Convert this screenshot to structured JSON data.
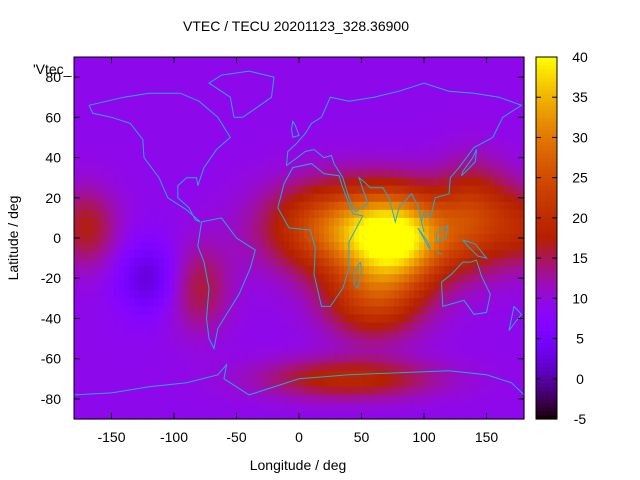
{
  "chart_data": {
    "type": "heatmap",
    "title": "VTEC / TECU 20201123_328.36900",
    "xlabel": "Longitude / deg",
    "ylabel": "Latitude / deg",
    "xlim": [
      -180,
      180
    ],
    "ylim": [
      -90,
      90
    ],
    "legend_label": "'Vtec_",
    "x_ticks": [
      -150,
      -100,
      -50,
      0,
      50,
      100,
      150
    ],
    "y_ticks": [
      -80,
      -60,
      -40,
      -20,
      0,
      20,
      40,
      60,
      80
    ],
    "colorbar": {
      "range": [
        -5,
        40
      ],
      "ticks": [
        -5,
        0,
        5,
        10,
        15,
        20,
        25,
        30,
        35,
        40
      ],
      "palette": "black-blue-purple-red-orange-yellow"
    },
    "grid": false,
    "features": [
      {
        "lon": 80,
        "lat": 0,
        "vtec": 36,
        "sx": 40,
        "sy": 22
      },
      {
        "lon": 30,
        "lat": 5,
        "vtec": 27,
        "sx": 55,
        "sy": 22
      },
      {
        "lon": 60,
        "lat": -30,
        "vtec": 22,
        "sx": 40,
        "sy": 20
      },
      {
        "lon": 140,
        "lat": 10,
        "vtec": 22,
        "sx": 30,
        "sy": 25
      },
      {
        "lon": -170,
        "lat": 5,
        "vtec": 17,
        "sx": 25,
        "sy": 20
      },
      {
        "lon": 180,
        "lat": 5,
        "vtec": 17,
        "sx": 25,
        "sy": 20
      },
      {
        "lon": -120,
        "lat": -20,
        "vtec": 2,
        "sx": 25,
        "sy": 18
      },
      {
        "lon": -80,
        "lat": -25,
        "vtec": 16,
        "sx": 25,
        "sy": 22
      },
      {
        "lon": 40,
        "lat": -70,
        "vtec": 19,
        "sx": 70,
        "sy": 10
      }
    ],
    "base_vtec": 9
  }
}
